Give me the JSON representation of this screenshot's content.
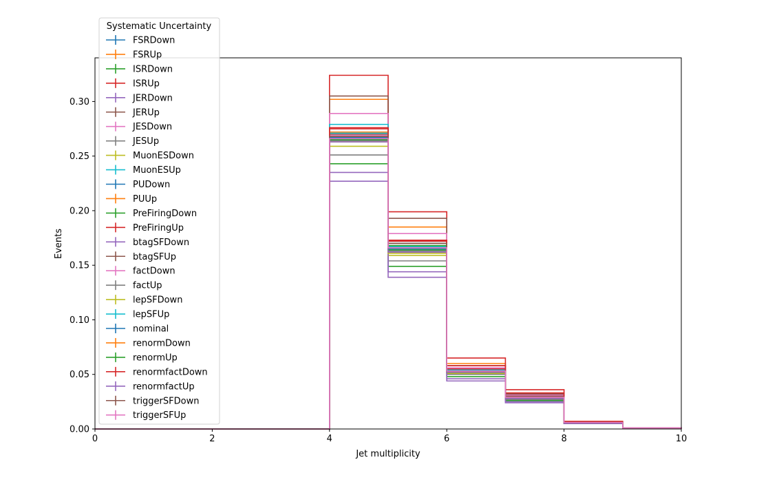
{
  "chart_data": {
    "type": "line",
    "title": "",
    "xlabel": "Jet multiplicity",
    "ylabel": "Events",
    "xlim": [
      0,
      10
    ],
    "ylim": [
      0,
      0.34
    ],
    "x_ticks": [
      "0",
      "2",
      "4",
      "6",
      "8",
      "10"
    ],
    "y_ticks": [
      "0.00",
      "0.05",
      "0.10",
      "0.15",
      "0.20",
      "0.25",
      "0.30"
    ],
    "grid": false,
    "legend": {
      "title": "Systematic Uncertainty",
      "placement": "top-left"
    },
    "bin_edges": [
      0,
      1,
      2,
      3,
      4,
      5,
      6,
      7,
      8,
      9,
      10
    ],
    "series": [
      {
        "name": "FSRDown",
        "color": "#1f77b4",
        "values": [
          0,
          0,
          0,
          0,
          0.265,
          0.17,
          0.053,
          0.029,
          0.006,
          0.001
        ]
      },
      {
        "name": "FSRUp",
        "color": "#ff7f0e",
        "values": [
          0,
          0,
          0,
          0,
          0.302,
          0.185,
          0.06,
          0.033,
          0.007,
          0.001
        ]
      },
      {
        "name": "ISRDown",
        "color": "#2ca02c",
        "values": [
          0,
          0,
          0,
          0,
          0.243,
          0.149,
          0.048,
          0.026,
          0.005,
          0.001
        ]
      },
      {
        "name": "ISRUp",
        "color": "#d62728",
        "values": [
          0,
          0,
          0,
          0,
          0.324,
          0.199,
          0.065,
          0.036,
          0.007,
          0.001
        ]
      },
      {
        "name": "JERDown",
        "color": "#9467bd",
        "values": [
          0,
          0,
          0,
          0,
          0.235,
          0.144,
          0.046,
          0.025,
          0.005,
          0.001
        ]
      },
      {
        "name": "JERUp",
        "color": "#8c564b",
        "values": [
          0,
          0,
          0,
          0,
          0.305,
          0.193,
          0.058,
          0.032,
          0.006,
          0.001
        ]
      },
      {
        "name": "JESDown",
        "color": "#e377c2",
        "values": [
          0,
          0,
          0,
          0,
          0.289,
          0.179,
          0.056,
          0.031,
          0.006,
          0.001
        ]
      },
      {
        "name": "JESUp",
        "color": "#7f7f7f",
        "values": [
          0,
          0,
          0,
          0,
          0.251,
          0.154,
          0.05,
          0.027,
          0.005,
          0.001
        ]
      },
      {
        "name": "MuonESDown",
        "color": "#bcbd22",
        "values": [
          0,
          0,
          0,
          0,
          0.259,
          0.159,
          0.051,
          0.028,
          0.006,
          0.001
        ]
      },
      {
        "name": "MuonESUp",
        "color": "#17becf",
        "values": [
          0,
          0,
          0,
          0,
          0.279,
          0.172,
          0.055,
          0.03,
          0.006,
          0.001
        ]
      },
      {
        "name": "PUDown",
        "color": "#1f77b4",
        "values": [
          0,
          0,
          0,
          0,
          0.267,
          0.164,
          0.053,
          0.029,
          0.006,
          0.001
        ]
      },
      {
        "name": "PUUp",
        "color": "#ff7f0e",
        "values": [
          0,
          0,
          0,
          0,
          0.272,
          0.167,
          0.054,
          0.029,
          0.006,
          0.001
        ]
      },
      {
        "name": "PreFiringDown",
        "color": "#2ca02c",
        "values": [
          0,
          0,
          0,
          0,
          0.266,
          0.168,
          0.053,
          0.029,
          0.006,
          0.001
        ]
      },
      {
        "name": "PreFiringUp",
        "color": "#d62728",
        "values": [
          0,
          0,
          0,
          0,
          0.275,
          0.172,
          0.055,
          0.03,
          0.006,
          0.001
        ]
      },
      {
        "name": "btagSFDown",
        "color": "#9467bd",
        "values": [
          0,
          0,
          0,
          0,
          0.227,
          0.139,
          0.044,
          0.024,
          0.005,
          0.001
        ]
      },
      {
        "name": "btagSFUp",
        "color": "#8c564b",
        "values": [
          0,
          0,
          0,
          0,
          0.27,
          0.17,
          0.054,
          0.03,
          0.006,
          0.001
        ]
      },
      {
        "name": "factDown",
        "color": "#e377c2",
        "values": [
          0,
          0,
          0,
          0,
          0.269,
          0.166,
          0.054,
          0.029,
          0.006,
          0.001
        ]
      },
      {
        "name": "factUp",
        "color": "#7f7f7f",
        "values": [
          0,
          0,
          0,
          0,
          0.264,
          0.163,
          0.052,
          0.028,
          0.006,
          0.001
        ]
      },
      {
        "name": "lepSFDown",
        "color": "#bcbd22",
        "values": [
          0,
          0,
          0,
          0,
          0.263,
          0.161,
          0.052,
          0.028,
          0.006,
          0.001
        ]
      },
      {
        "name": "lepSFUp",
        "color": "#17becf",
        "values": [
          0,
          0,
          0,
          0,
          0.271,
          0.167,
          0.054,
          0.029,
          0.006,
          0.001
        ]
      },
      {
        "name": "nominal",
        "color": "#1f77b4",
        "values": [
          0,
          0,
          0,
          0,
          0.267,
          0.165,
          0.053,
          0.029,
          0.006,
          0.001
        ]
      },
      {
        "name": "renormDown",
        "color": "#ff7f0e",
        "values": [
          0,
          0,
          0,
          0,
          0.268,
          0.166,
          0.053,
          0.029,
          0.006,
          0.001
        ]
      },
      {
        "name": "renormUp",
        "color": "#2ca02c",
        "values": [
          0,
          0,
          0,
          0,
          0.265,
          0.164,
          0.052,
          0.028,
          0.006,
          0.001
        ]
      },
      {
        "name": "renormfactDown",
        "color": "#d62728",
        "values": [
          0,
          0,
          0,
          0,
          0.276,
          0.173,
          0.058,
          0.033,
          0.006,
          0.001
        ]
      },
      {
        "name": "renormfactUp",
        "color": "#9467bd",
        "values": [
          0,
          0,
          0,
          0,
          0.263,
          0.162,
          0.052,
          0.028,
          0.006,
          0.001
        ]
      },
      {
        "name": "triggerSFDown",
        "color": "#8c564b",
        "values": [
          0,
          0,
          0,
          0,
          0.268,
          0.17,
          0.053,
          0.029,
          0.006,
          0.001
        ]
      },
      {
        "name": "triggerSFUp",
        "color": "#e377c2",
        "values": [
          0,
          0,
          0,
          0,
          0.266,
          0.166,
          0.053,
          0.029,
          0.006,
          0.001
        ]
      }
    ]
  }
}
